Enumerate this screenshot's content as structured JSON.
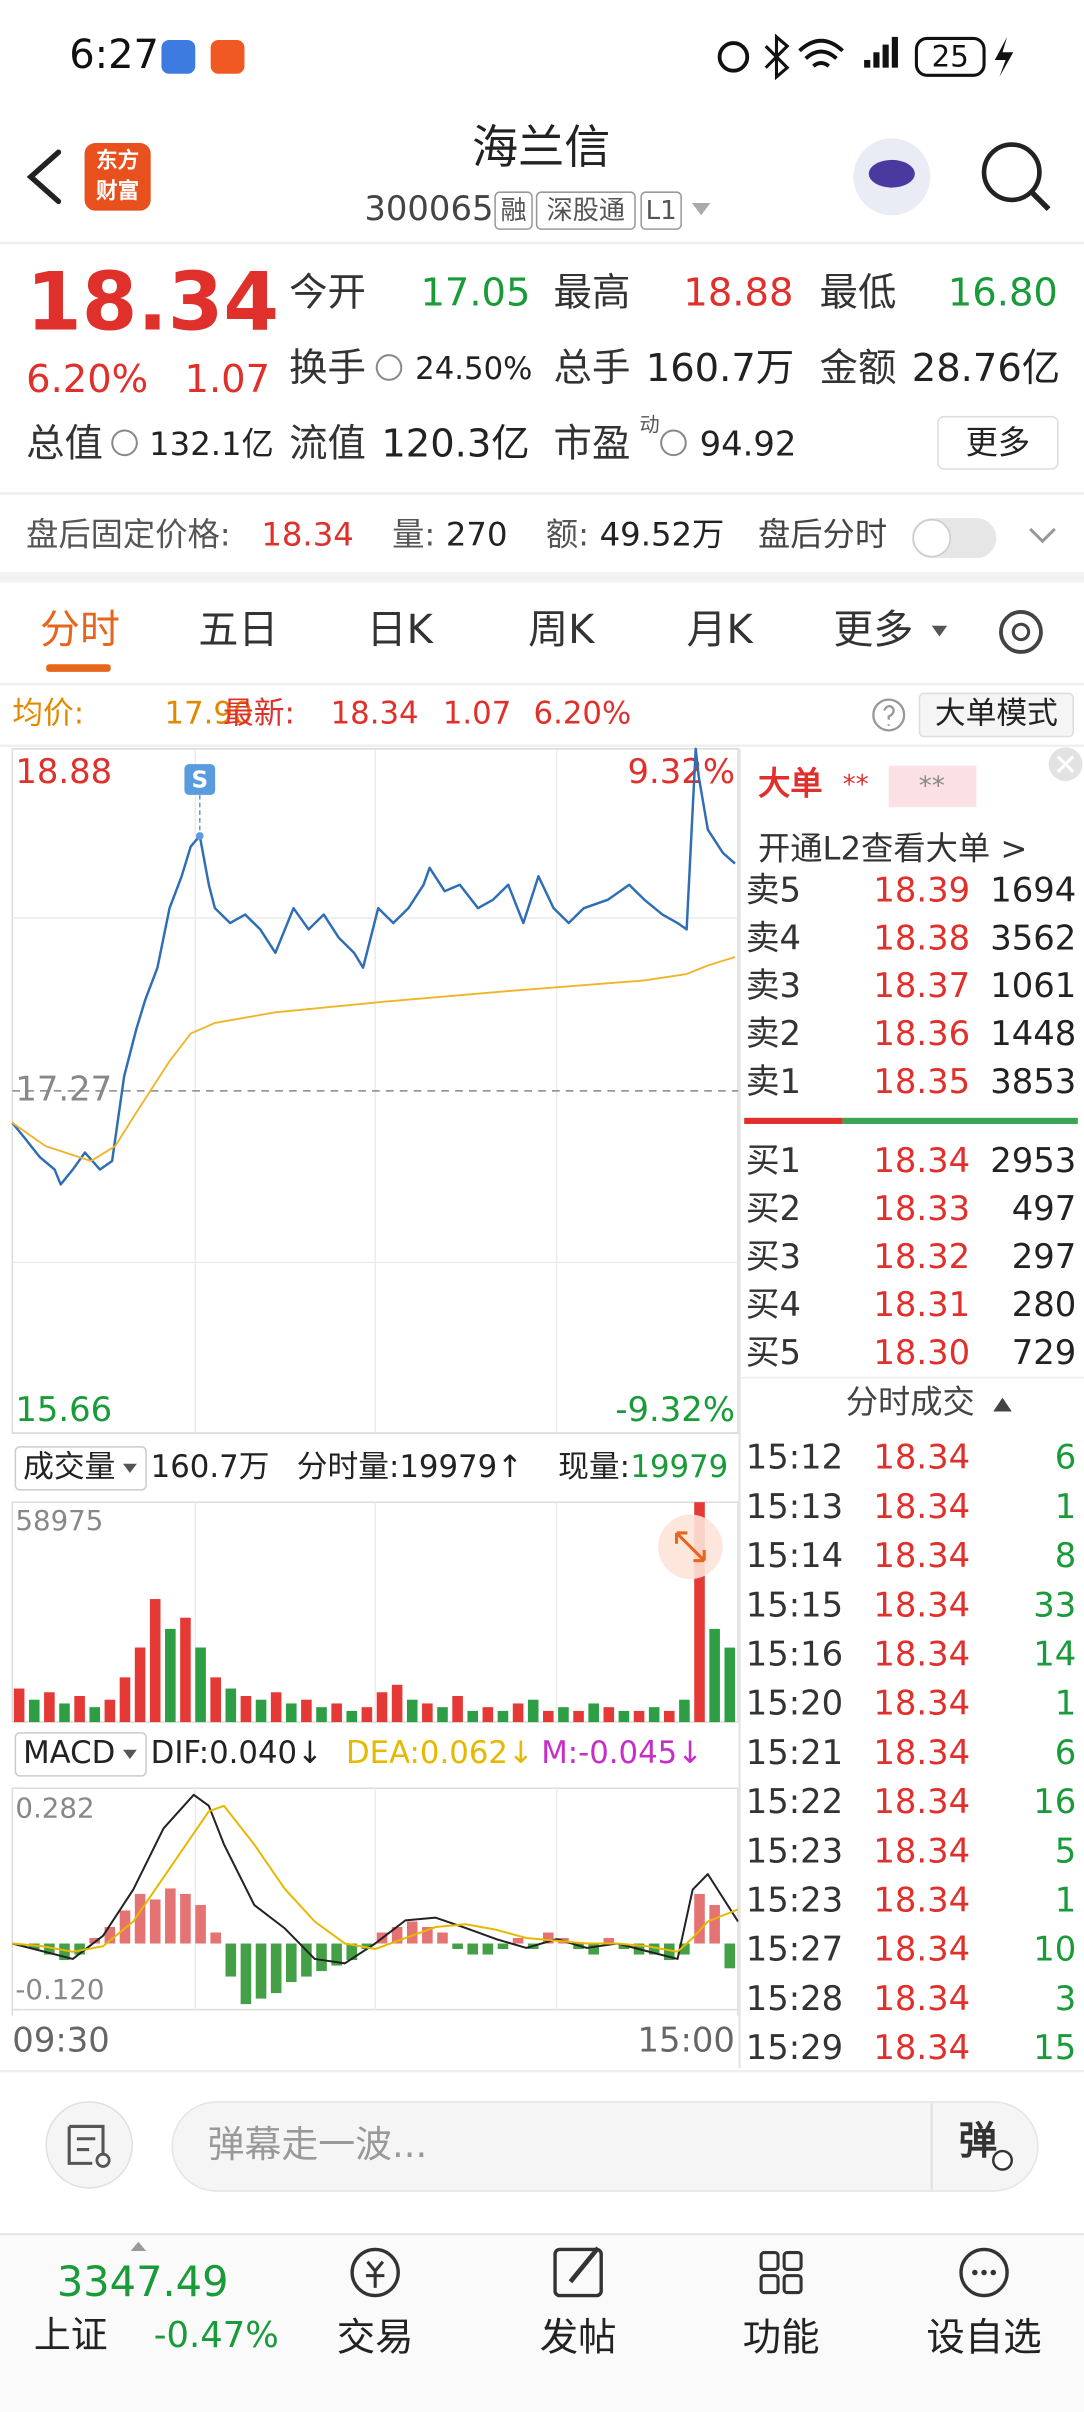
{
  "status_bar": {
    "time": "6:27",
    "battery": "25"
  },
  "header": {
    "logo_lines": [
      "东方",
      "财富"
    ],
    "title": "海兰信",
    "code": "300065",
    "tags": [
      "融",
      "深股通",
      "L1"
    ]
  },
  "quote": {
    "price": "18.34",
    "change_pct": "6.20%",
    "change": "1.07",
    "stats": [
      {
        "label": "今开",
        "value": "17.05"
      },
      {
        "label": "最高",
        "value": "18.88"
      },
      {
        "label": "最低",
        "value": "16.80"
      },
      {
        "label": "换手",
        "value": "24.50%"
      },
      {
        "label": "总手",
        "value": "160.7万"
      },
      {
        "label": "金额",
        "value": "28.76亿"
      },
      {
        "label": "总值",
        "value": "132.1亿"
      },
      {
        "label": "流值",
        "value": "120.3亿"
      },
      {
        "label": "市盈",
        "superscript": "动",
        "value": "94.92"
      }
    ],
    "more_button": "更多"
  },
  "after_hours": {
    "fixed_price_label": "盘后固定价格:",
    "fixed_price": "18.34",
    "volume_label": "量:",
    "volume": "270",
    "amount_label": "额:",
    "amount": "49.52万",
    "chart_label": "盘后分时"
  },
  "tabs": [
    "分时",
    "五日",
    "日K",
    "周K",
    "月K",
    "更多"
  ],
  "info_bar": {
    "avg_label": "均价:",
    "avg": "17.90",
    "latest_label": "最新:",
    "latest": "18.34",
    "change": "1.07",
    "change_pct": "6.20%",
    "mode_button": "大单模式"
  },
  "chart_data": [
    {
      "type": "line",
      "xlim": [
        0,
        240
      ],
      "ylim": [
        15.66,
        18.88
      ],
      "yticks": [
        15.66,
        17.27,
        18.88
      ],
      "y2lim": [
        -9.32,
        9.32
      ],
      "y2ticks": [
        {
          "value": -9.32,
          "label": "-9.32%"
        },
        {
          "value": 9.32,
          "label": "9.32%"
        }
      ],
      "annotations": [
        {
          "text": "S",
          "x": 62
        }
      ],
      "series": [
        {
          "color": "#2f6db5",
          "x": [
            0,
            4,
            9,
            14,
            16,
            20,
            24,
            29,
            33,
            37,
            41,
            44,
            48,
            52,
            56,
            59,
            62,
            65,
            67,
            72,
            77,
            82,
            87,
            93,
            98,
            103,
            108,
            113,
            116,
            121,
            126,
            131,
            136,
            138,
            143,
            148,
            154,
            159,
            164,
            169,
            174,
            179,
            184,
            189,
            197,
            204,
            209,
            215,
            220,
            223,
            226,
            227,
            230,
            235,
            239
          ],
          "values": [
            17.12,
            17.05,
            16.96,
            16.9,
            16.83,
            16.9,
            16.98,
            16.9,
            16.94,
            17.34,
            17.56,
            17.7,
            17.85,
            18.13,
            18.28,
            18.42,
            18.47,
            18.24,
            18.13,
            18.06,
            18.1,
            18.03,
            17.92,
            18.13,
            18.03,
            18.1,
            17.99,
            17.92,
            17.85,
            18.13,
            18.06,
            18.13,
            18.24,
            18.32,
            18.21,
            18.24,
            18.13,
            18.17,
            18.24,
            18.06,
            18.28,
            18.13,
            18.06,
            18.13,
            18.17,
            18.24,
            18.17,
            18.1,
            18.06,
            18.03,
            18.88,
            18.75,
            18.5,
            18.39,
            18.34
          ]
        },
        {
          "color": "#f0b429",
          "x": [
            0,
            11,
            26,
            34,
            42,
            52,
            59,
            67,
            87,
            123,
            164,
            209,
            223,
            230,
            239
          ],
          "values": [
            17.12,
            17.01,
            16.94,
            17.01,
            17.19,
            17.41,
            17.54,
            17.59,
            17.64,
            17.69,
            17.74,
            17.79,
            17.82,
            17.86,
            17.9
          ]
        }
      ]
    },
    {
      "type": "bar",
      "header": {
        "selector": "成交量",
        "total": "160.7万",
        "minute_volume": "分时量:19979↑",
        "current_label": "现量:",
        "current": "19979"
      },
      "xlim": [
        0,
        240
      ],
      "ylim": [
        0,
        58975
      ],
      "yticks": [
        58975
      ],
      "x": [
        0,
        5,
        10,
        15,
        20,
        25,
        30,
        35,
        40,
        45,
        50,
        55,
        60,
        65,
        70,
        75,
        80,
        85,
        90,
        95,
        100,
        105,
        110,
        115,
        120,
        125,
        130,
        135,
        140,
        145,
        150,
        155,
        160,
        165,
        170,
        175,
        180,
        185,
        190,
        195,
        200,
        205,
        210,
        215,
        220,
        225,
        230,
        235
      ],
      "values": [
        9000,
        6000,
        8000,
        5000,
        7000,
        4000,
        6000,
        12000,
        20000,
        33000,
        25000,
        28000,
        20000,
        12000,
        9000,
        7000,
        6000,
        8000,
        5000,
        6000,
        4000,
        5000,
        3000,
        4000,
        8000,
        10000,
        6000,
        5000,
        4000,
        7000,
        3000,
        4000,
        3000,
        5000,
        6000,
        3000,
        4000,
        3000,
        5000,
        4000,
        3000,
        3000,
        4000,
        3000,
        6000,
        58975,
        25000,
        19979
      ],
      "bar_colors": [
        "#e53935",
        "#2e9e44",
        "#e53935",
        "#2e9e44",
        "#e53935",
        "#2e9e44",
        "#e53935",
        "#e53935",
        "#e53935",
        "#e53935",
        "#2e9e44",
        "#e53935",
        "#2e9e44",
        "#e53935",
        "#2e9e44",
        "#e53935",
        "#2e9e44",
        "#e53935",
        "#2e9e44",
        "#e53935",
        "#2e9e44",
        "#e53935",
        "#2e9e44",
        "#e53935",
        "#e53935",
        "#e53935",
        "#2e9e44",
        "#e53935",
        "#2e9e44",
        "#e53935",
        "#2e9e44",
        "#e53935",
        "#2e9e44",
        "#e53935",
        "#2e9e44",
        "#e53935",
        "#2e9e44",
        "#e53935",
        "#2e9e44",
        "#e53935",
        "#2e9e44",
        "#e53935",
        "#2e9e44",
        "#e53935",
        "#2e9e44",
        "#e53935",
        "#2e9e44",
        "#2e9e44"
      ]
    },
    {
      "type": "macd",
      "header": {
        "selector": "MACD",
        "dif": "DIF:0.040↓",
        "dea": "DEA:0.062↓",
        "m": "M:-0.045↓"
      },
      "xlim": [
        0,
        240
      ],
      "xticks": [
        {
          "value": 0,
          "label": "09:30"
        },
        {
          "value": 240,
          "label": "15:00"
        }
      ],
      "ylim": [
        -0.12,
        0.282
      ],
      "yticks": [
        {
          "value": -0.12,
          "label": "-0.120"
        },
        0.282
      ],
      "up_color": "#e57373",
      "down_color": "#43a047",
      "series": [
        {
          "color": "#222222",
          "x": [
            0,
            20,
            30,
            40,
            50,
            60,
            65,
            70,
            80,
            90,
            100,
            110,
            120,
            130,
            140,
            150,
            160,
            170,
            180,
            190,
            200,
            210,
            220,
            225,
            230,
            240
          ],
          "values": [
            0,
            -0.028,
            0.014,
            0.098,
            0.209,
            0.27,
            0.25,
            0.18,
            0.07,
            0.028,
            -0.028,
            -0.036,
            0,
            0.042,
            0.047,
            0.028,
            0.008,
            -0.008,
            0.008,
            -0.008,
            0,
            -0.014,
            -0.028,
            0.098,
            0.126,
            0.04
          ]
        },
        {
          "color": "#e6b800",
          "x": [
            0,
            10,
            20,
            30,
            40,
            50,
            60,
            65,
            70,
            80,
            90,
            100,
            110,
            120,
            130,
            140,
            150,
            160,
            170,
            180,
            190,
            200,
            210,
            220,
            225,
            230,
            240
          ],
          "values": [
            0,
            -0.005,
            -0.015,
            -0.005,
            0.04,
            0.12,
            0.2,
            0.24,
            0.25,
            0.18,
            0.1,
            0.04,
            0,
            -0.01,
            0.01,
            0.03,
            0.035,
            0.025,
            0.01,
            0.005,
            0,
            0,
            -0.005,
            -0.015,
            0.01,
            0.04,
            0.062
          ]
        }
      ],
      "bars": {
        "x": [
          0,
          5,
          10,
          15,
          20,
          25,
          30,
          35,
          40,
          45,
          50,
          55,
          60,
          65,
          70,
          75,
          80,
          85,
          90,
          95,
          100,
          105,
          110,
          115,
          120,
          125,
          130,
          135,
          140,
          145,
          150,
          155,
          160,
          165,
          170,
          175,
          180,
          185,
          190,
          195,
          200,
          205,
          210,
          215,
          220,
          225,
          230,
          235
        ],
        "values": [
          0,
          -0.01,
          -0.02,
          -0.03,
          -0.02,
          0.01,
          0.03,
          0.06,
          0.09,
          0.08,
          0.1,
          0.09,
          0.07,
          0.02,
          -0.06,
          -0.11,
          -0.1,
          -0.09,
          -0.07,
          -0.06,
          -0.05,
          -0.04,
          -0.03,
          -0.01,
          0.02,
          0.03,
          0.04,
          0.03,
          0.02,
          -0.01,
          -0.02,
          -0.02,
          -0.01,
          0.01,
          -0.01,
          0.02,
          0.01,
          -0.01,
          -0.02,
          0.01,
          -0.01,
          -0.02,
          -0.02,
          -0.03,
          -0.02,
          0.09,
          0.07,
          -0.045
        ]
      }
    }
  ],
  "big_orders": {
    "title": "大单",
    "masked": [
      "**",
      "**"
    ],
    "link": "开通L2查看大单 >"
  },
  "order_book": {
    "asks": [
      {
        "label": "卖5",
        "price": "18.39",
        "volume": "1694"
      },
      {
        "label": "卖4",
        "price": "18.38",
        "volume": "3562"
      },
      {
        "label": "卖3",
        "price": "18.37",
        "volume": "1061"
      },
      {
        "label": "卖2",
        "price": "18.36",
        "volume": "1448"
      },
      {
        "label": "卖1",
        "price": "18.35",
        "volume": "3853"
      }
    ],
    "bids": [
      {
        "label": "买1",
        "price": "18.34",
        "volume": "2953"
      },
      {
        "label": "买2",
        "price": "18.33",
        "volume": "497"
      },
      {
        "label": "买3",
        "price": "18.32",
        "volume": "297"
      },
      {
        "label": "买4",
        "price": "18.31",
        "volume": "280"
      },
      {
        "label": "买5",
        "price": "18.30",
        "volume": "729"
      }
    ]
  },
  "trades": {
    "title": "分时成交",
    "rows": [
      [
        "15:12",
        "18.34",
        "6"
      ],
      [
        "15:13",
        "18.34",
        "1"
      ],
      [
        "15:14",
        "18.34",
        "8"
      ],
      [
        "15:15",
        "18.34",
        "33"
      ],
      [
        "15:16",
        "18.34",
        "14"
      ],
      [
        "15:20",
        "18.34",
        "1"
      ],
      [
        "15:21",
        "18.34",
        "6"
      ],
      [
        "15:22",
        "18.34",
        "16"
      ],
      [
        "15:23",
        "18.34",
        "5"
      ],
      [
        "15:23",
        "18.34",
        "1"
      ],
      [
        "15:27",
        "18.34",
        "10"
      ],
      [
        "15:28",
        "18.34",
        "3"
      ],
      [
        "15:29",
        "18.34",
        "15"
      ]
    ]
  },
  "comment_bar": {
    "placeholder": "弹幕走一波...",
    "send": "弹"
  },
  "bottom_nav": {
    "index_value": "3347.49",
    "index_name": "上证",
    "index_change": "-0.47%",
    "items": [
      "交易",
      "发帖",
      "功能",
      "设自选"
    ]
  }
}
